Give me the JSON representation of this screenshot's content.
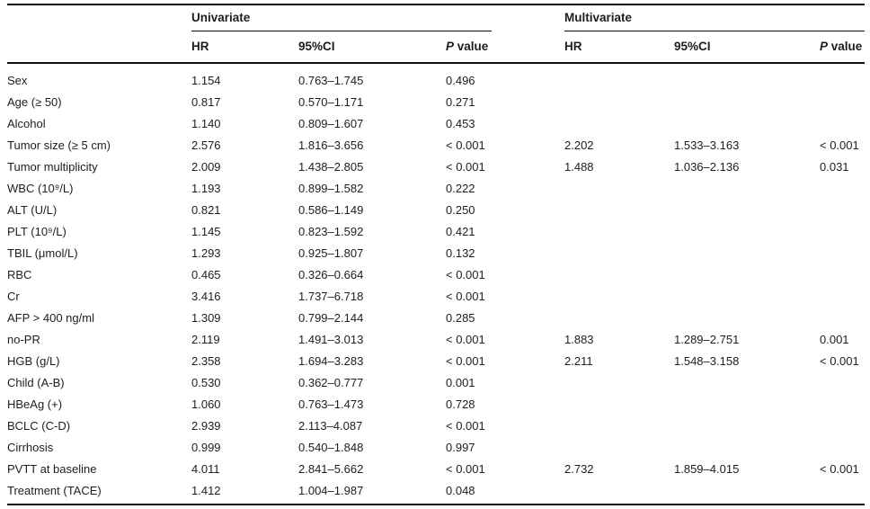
{
  "colors": {
    "background": "#ffffff",
    "text": "#1d1d1b",
    "rule": "#0f0f0f"
  },
  "table": {
    "group_headers": {
      "univariate": "Univariate",
      "multivariate": "Multivariate"
    },
    "col_headers": {
      "hr": "HR",
      "ci": "95%CI",
      "p_italic": "P",
      "p_rest": " value"
    },
    "rows": [
      {
        "label": "Sex",
        "uni_hr": "1.154",
        "uni_ci": "0.763–1.745",
        "uni_p": "0.496",
        "multi_hr": "",
        "multi_ci": "",
        "multi_p": ""
      },
      {
        "label": "Age (≥ 50)",
        "uni_hr": "0.817",
        "uni_ci": "0.570–1.171",
        "uni_p": "0.271",
        "multi_hr": "",
        "multi_ci": "",
        "multi_p": ""
      },
      {
        "label": "Alcohol",
        "uni_hr": "1.140",
        "uni_ci": "0.809–1.607",
        "uni_p": "0.453",
        "multi_hr": "",
        "multi_ci": "",
        "multi_p": ""
      },
      {
        "label": "Tumor size (≥ 5 cm)",
        "uni_hr": "2.576",
        "uni_ci": "1.816–3.656",
        "uni_p": "< 0.001",
        "multi_hr": "2.202",
        "multi_ci": "1.533–3.163",
        "multi_p": "< 0.001"
      },
      {
        "label": "Tumor multiplicity",
        "uni_hr": "2.009",
        "uni_ci": "1.438–2.805",
        "uni_p": "< 0.001",
        "multi_hr": "1.488",
        "multi_ci": "1.036–2.136",
        "multi_p": "0.031"
      },
      {
        "label": "WBC (10⁹/L)",
        "uni_hr": "1.193",
        "uni_ci": "0.899–1.582",
        "uni_p": "0.222",
        "multi_hr": "",
        "multi_ci": "",
        "multi_p": ""
      },
      {
        "label": "ALT (U/L)",
        "uni_hr": "0.821",
        "uni_ci": "0.586–1.149",
        "uni_p": "0.250",
        "multi_hr": "",
        "multi_ci": "",
        "multi_p": ""
      },
      {
        "label": "PLT (10⁹/L)",
        "uni_hr": "1.145",
        "uni_ci": "0.823–1.592",
        "uni_p": "0.421",
        "multi_hr": "",
        "multi_ci": "",
        "multi_p": ""
      },
      {
        "label": "TBIL (μmol/L)",
        "uni_hr": "1.293",
        "uni_ci": "0.925–1.807",
        "uni_p": "0.132",
        "multi_hr": "",
        "multi_ci": "",
        "multi_p": ""
      },
      {
        "label": "RBC",
        "uni_hr": "0.465",
        "uni_ci": "0.326–0.664",
        "uni_p": "< 0.001",
        "multi_hr": "",
        "multi_ci": "",
        "multi_p": ""
      },
      {
        "label": "Cr",
        "uni_hr": "3.416",
        "uni_ci": "1.737–6.718",
        "uni_p": "< 0.001",
        "multi_hr": "",
        "multi_ci": "",
        "multi_p": ""
      },
      {
        "label": "AFP > 400 ng/ml",
        "uni_hr": "1.309",
        "uni_ci": "0.799–2.144",
        "uni_p": "0.285",
        "multi_hr": "",
        "multi_ci": "",
        "multi_p": ""
      },
      {
        "label": "no-PR",
        "uni_hr": "2.119",
        "uni_ci": "1.491–3.013",
        "uni_p": "< 0.001",
        "multi_hr": "1.883",
        "multi_ci": "1.289–2.751",
        "multi_p": "0.001"
      },
      {
        "label": "HGB (g/L)",
        "uni_hr": "2.358",
        "uni_ci": "1.694–3.283",
        "uni_p": "< 0.001",
        "multi_hr": "2.211",
        "multi_ci": "1.548–3.158",
        "multi_p": "< 0.001"
      },
      {
        "label": "Child (A-B)",
        "uni_hr": "0.530",
        "uni_ci": "0.362–0.777",
        "uni_p": "0.001",
        "multi_hr": "",
        "multi_ci": "",
        "multi_p": ""
      },
      {
        "label": "HBeAg (+)",
        "uni_hr": "1.060",
        "uni_ci": "0.763–1.473",
        "uni_p": "0.728",
        "multi_hr": "",
        "multi_ci": "",
        "multi_p": ""
      },
      {
        "label": "BCLC (C-D)",
        "uni_hr": "2.939",
        "uni_ci": "2.113–4.087",
        "uni_p": "< 0.001",
        "multi_hr": "",
        "multi_ci": "",
        "multi_p": ""
      },
      {
        "label": "Cirrhosis",
        "uni_hr": "0.999",
        "uni_ci": "0.540–1.848",
        "uni_p": "0.997",
        "multi_hr": "",
        "multi_ci": "",
        "multi_p": ""
      },
      {
        "label": "PVTT at baseline",
        "uni_hr": "4.011",
        "uni_ci": "2.841–5.662",
        "uni_p": "< 0.001",
        "multi_hr": "2.732",
        "multi_ci": "1.859–4.015",
        "multi_p": "< 0.001"
      },
      {
        "label": "Treatment (TACE)",
        "uni_hr": "1.412",
        "uni_ci": "1.004–1.987",
        "uni_p": "0.048",
        "multi_hr": "",
        "multi_ci": "",
        "multi_p": ""
      }
    ]
  }
}
